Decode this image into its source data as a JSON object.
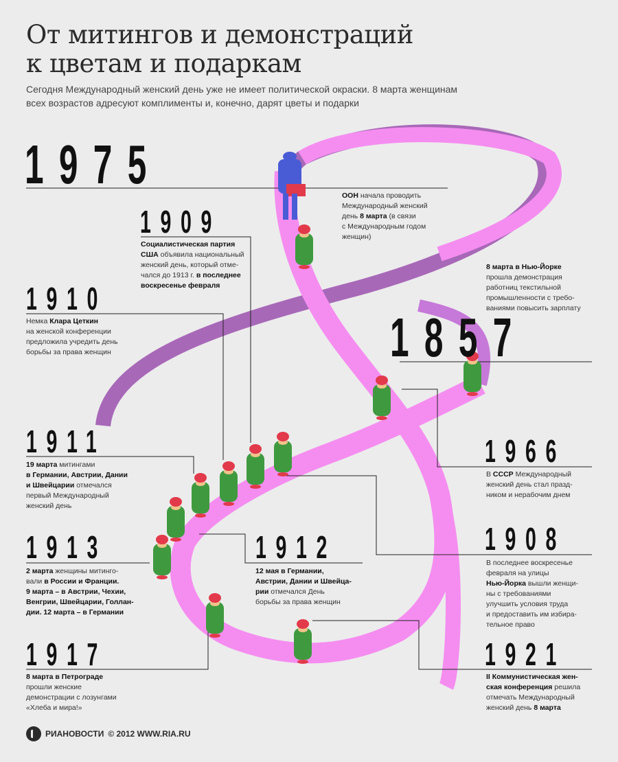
{
  "header": {
    "title_line1": "От митингов и демонстраций",
    "title_line2": "к цветам и подаркам",
    "subtitle_line1": "Сегодня Международный женский день уже не имеет политической окраски. 8 марта женщинам",
    "subtitle_line2": "всех возрастов адресуют комплименты и, конечно, дарят цветы и подарки"
  },
  "years": {
    "y1975": "1975",
    "y1909": "1909",
    "y1910": "1910",
    "y1857": "1857",
    "y1966": "1966",
    "y1911": "1911",
    "y1908": "1908",
    "y1913": "1913",
    "y1912": "1912",
    "y1917": "1917",
    "y1921": "1921"
  },
  "notes": {
    "n1975": {
      "b1": "ООН",
      "t1": " начала проводить",
      "t2": "Международный женский",
      "t3a": "день ",
      "b3": "8 марта",
      "t3b": " (в связи",
      "t4": "с Международным годом",
      "t5": "женщин)"
    },
    "n1909": {
      "b1": "Социалистическая партия",
      "b2": "США",
      "t2": " объявила национальный",
      "t3": "женский день, который отме-",
      "t4a": "чался до 1913 г. ",
      "b4": "в последнее",
      "b5": "воскресенье февраля"
    },
    "n1910": {
      "t1a": "Немка ",
      "b1": "Клара Цеткин",
      "t2": "на женской конференции",
      "t3": "предложила учредить день",
      "t4": "борьбы за права женщин"
    },
    "n1857": {
      "b1": "8 марта в Нью-Йорке",
      "t2": "прошла демонстрация",
      "t3": "работниц текстильной",
      "t4": "промышленности с требо-",
      "t5": "ваниями повысить зарплату"
    },
    "n1966": {
      "t1a": "В ",
      "b1": "СССР",
      "t1b": " Международный",
      "t2": "женский день стал празд-",
      "t3": "ником и нерабочим днем"
    },
    "n1911": {
      "b1": "19 марта",
      "t1": " митингами",
      "b2": "в Германии, Австрии, Дании",
      "b3": "и Швейцарии",
      "t3": " отмечался",
      "t4": "первый Международный",
      "t5": "женский день"
    },
    "n1908": {
      "t1": "В последнее воскресенье",
      "t2": "февраля на улицы",
      "b3": "Нью-Йорка",
      "t3": " вышли  женщи-",
      "t4": "ны с требованиями",
      "t5": "улучшить условия труда",
      "t6": "и предоставить им избира-",
      "t7": "тельное право"
    },
    "n1913": {
      "b1": "2 марта",
      "t1": " женщины митинго-",
      "t2a": "вали ",
      "b2": "в России и Франции.",
      "b3": "9 марта – в Австрии, Чехии,",
      "b4": "Венгрии, Швейцарии, Голлан-",
      "b5": "дии. 12 марта – в Германии"
    },
    "n1912": {
      "b1": "12 мая в Германии,",
      "b2": "Австрии, Дании и Швейца-",
      "b3": "рии",
      "t3": " отмечался День",
      "t4": "борьбы за права женщин"
    },
    "n1917": {
      "b1": "8 марта в Петрограде",
      "t2": "прошли женские",
      "t3": "демонстрации с лозунгами",
      "t4": "«Хлеба и мира!»"
    },
    "n1921": {
      "b1": "II Коммунистическая жен-",
      "b2": "ская конференция",
      "t2": " решила",
      "t3": "отмечать Международный",
      "t4a": "женский день ",
      "b4": "8 марта"
    }
  },
  "footer": {
    "brand": "РИАНОВОСТИ",
    "copyright": "© 2012 WWW.RIA.RU"
  },
  "colors": {
    "ribbon": "#f58df0",
    "ribbon_shade": "#a868b8",
    "figure_coat": "#3f9a3f",
    "figure_hat": "#e23a4a",
    "figure_blue": "#4a5bd6"
  }
}
